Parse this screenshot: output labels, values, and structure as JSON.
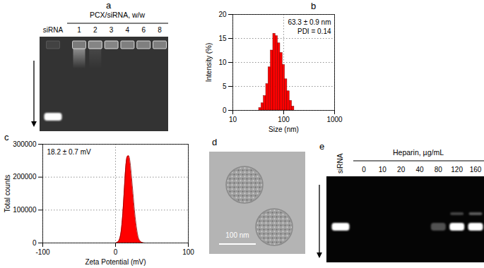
{
  "chart_data": [
    {
      "label": "b",
      "type": "histogram",
      "bins": [
        32.7,
        36.4,
        40.5,
        45.0,
        50.0,
        55.6,
        61.9,
        68.8,
        76.5,
        85.1,
        94.6,
        105.2,
        117.0,
        130.1,
        144.7,
        160.9
      ],
      "values": [
        0.5,
        1.5,
        3,
        5.5,
        9,
        12.5,
        16,
        15.5,
        14,
        12,
        9.5,
        6.5,
        4,
        2,
        0.8
      ],
      "color": "#ff0000",
      "xlabel": "Size (nm)",
      "ylabel": "Intensity (%)",
      "xlim": [
        10,
        1000
      ],
      "ylim": [
        0,
        20
      ],
      "xticks": [
        10,
        100,
        1000
      ],
      "yticks": [
        0,
        5,
        10,
        15,
        20
      ],
      "log": "x",
      "grid": true,
      "annotations": [
        "63.3 ± 0.9 nm",
        "PDI = 0.14"
      ]
    },
    {
      "label": "c",
      "type": "area",
      "x": [
        0,
        4,
        8,
        10,
        12,
        14,
        16,
        18,
        20,
        22,
        24,
        26,
        28,
        30,
        32,
        36,
        40
      ],
      "values": [
        0,
        5000,
        40000,
        90000,
        160000,
        230000,
        262000,
        265000,
        245000,
        200000,
        150000,
        100000,
        60000,
        30000,
        12000,
        2000,
        0
      ],
      "color": "#ff0000",
      "xlabel": "Zeta Potential (mV)",
      "ylabel": "Total counts",
      "xlim": [
        -100,
        100
      ],
      "ylim": [
        0,
        300000
      ],
      "xticks": [
        -100,
        0,
        100
      ],
      "yticks": [
        0,
        100000,
        200000,
        300000
      ],
      "grid": true,
      "annotations": [
        "18.2 ± 0.7 mV"
      ]
    }
  ],
  "panels": {
    "a": {
      "label": "a",
      "type": "gel",
      "header": "PCX/siRNA, w/w",
      "lanes": [
        "siRNA",
        "1",
        "2",
        "3",
        "4",
        "6",
        "8"
      ],
      "well_band": [
        0.15,
        0.7,
        0.8,
        0.8,
        0.75,
        0.75,
        0.75
      ],
      "smear": [
        0,
        0.45,
        0.1,
        0,
        0,
        0,
        0
      ],
      "free_band": [
        1,
        0,
        0,
        0,
        0,
        0,
        0
      ]
    },
    "d": {
      "label": "d",
      "type": "image",
      "scale_bar": "100 nm"
    },
    "e": {
      "label": "e",
      "type": "gel",
      "header": "Heparin, µg/mL",
      "lanes": [
        "siRNA",
        "0",
        "10",
        "20",
        "40",
        "80",
        "120",
        "160"
      ],
      "upper_band": [
        0,
        0,
        0,
        0,
        0,
        0,
        0.25,
        0.35
      ],
      "free_band": [
        1,
        0,
        0,
        0,
        0,
        0.3,
        1,
        1
      ]
    }
  }
}
